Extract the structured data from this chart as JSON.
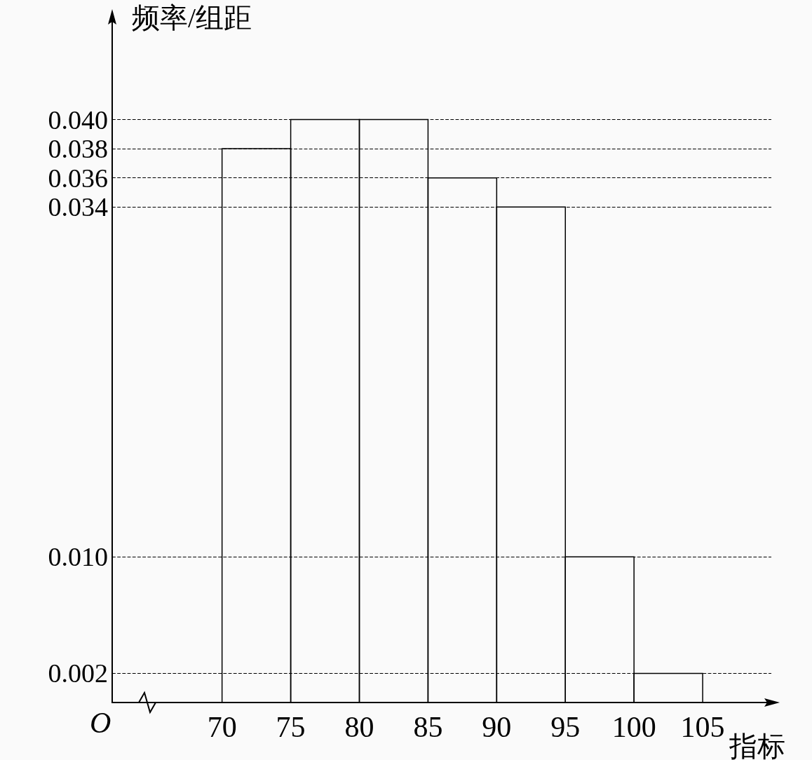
{
  "chart_data": {
    "type": "histogram",
    "bins": [
      70,
      75,
      80,
      85,
      90,
      95,
      100,
      105
    ],
    "values": [
      0.038,
      0.04,
      0.04,
      0.036,
      0.034,
      0.01,
      0.002
    ],
    "color": "#000000",
    "xlabel": "指标",
    "ylabel": "频率/组距",
    "xlim": [
      62,
      110
    ],
    "xticks": [
      70,
      75,
      80,
      85,
      90,
      95,
      100,
      105
    ],
    "ylim": [
      0,
      0.047
    ],
    "yticks": [
      {
        "value": 0.002,
        "label": "0.002"
      },
      {
        "value": 0.01,
        "label": "0.010"
      },
      {
        "value": 0.034,
        "label": "0.034"
      },
      {
        "value": 0.036,
        "label": "0.036"
      },
      {
        "value": 0.038,
        "label": "0.038"
      },
      {
        "value": 0.04,
        "label": "0.040"
      }
    ],
    "grid": "y",
    "line_style": "dashed",
    "annotations": [
      "O"
    ]
  }
}
